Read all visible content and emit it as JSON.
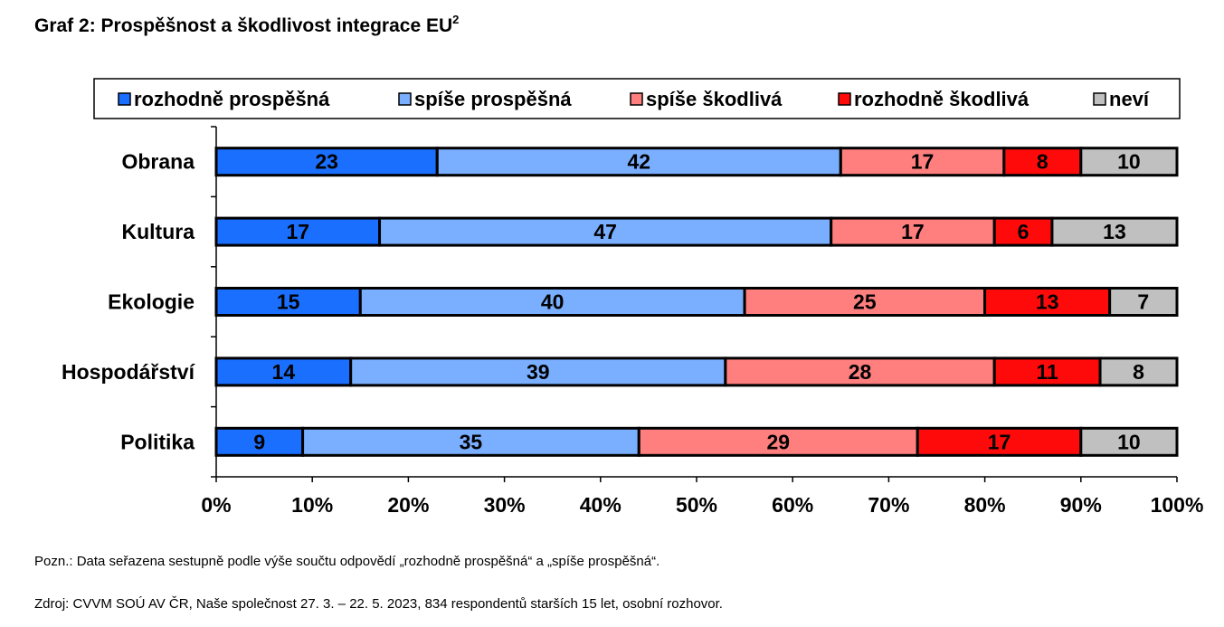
{
  "title": "Graf 2: Prospěšnost a škodlivost integrace EU",
  "title_superscript": "2",
  "note": "Pozn.: Data seřazena sestupně podle výše součtu odpovědí „rozhodně prospěšná“ a „spíše prospěšná“.",
  "source": "Zdroj: CVVM SOÚ AV ČR, Naše společnost 27. 3. – 22. 5. 2023, 834 respondentů starších 15 let, osobní rozhovor.",
  "chart_data": {
    "type": "bar",
    "orientation": "horizontal",
    "stacked": "percent",
    "categories": [
      "Obrana",
      "Kultura",
      "Ekologie",
      "Hospodářství",
      "Politika"
    ],
    "series": [
      {
        "name": "rozhodně prospěšná",
        "color": "#1a6fff",
        "values": [
          23,
          17,
          15,
          14,
          9
        ]
      },
      {
        "name": "spíše prospěšná",
        "color": "#7aaeff",
        "values": [
          42,
          47,
          40,
          39,
          35
        ]
      },
      {
        "name": "spíše škodlivá",
        "color": "#ff7f7f",
        "values": [
          17,
          17,
          25,
          28,
          29
        ]
      },
      {
        "name": "rozhodně škodlivá",
        "color": "#ff0a0a",
        "values": [
          8,
          6,
          13,
          11,
          17
        ]
      },
      {
        "name": "neví",
        "color": "#c0c0c0",
        "values": [
          10,
          13,
          7,
          8,
          10
        ]
      }
    ],
    "x_ticks": [
      "0%",
      "10%",
      "20%",
      "30%",
      "40%",
      "50%",
      "60%",
      "70%",
      "80%",
      "90%",
      "100%"
    ],
    "xlim": [
      0,
      100
    ],
    "legend_position": "top",
    "grid": false
  }
}
